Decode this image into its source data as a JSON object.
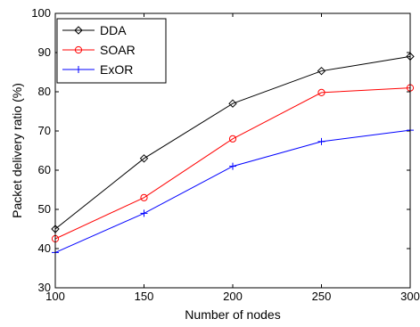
{
  "chart_data": {
    "type": "line",
    "title": "",
    "xlabel": "Number of nodes",
    "ylabel": "Packet delivery ratio (%)",
    "x": [
      100,
      150,
      200,
      250,
      300
    ],
    "xlim": [
      100,
      300
    ],
    "ylim": [
      30,
      100
    ],
    "xticks": [
      "100",
      "150",
      "200",
      "250",
      "300"
    ],
    "yticks": [
      "30",
      "40",
      "50",
      "60",
      "70",
      "80",
      "90",
      "100"
    ],
    "grid": false,
    "legend_position": "top-left",
    "series": [
      {
        "name": "DDA",
        "values": [
          45,
          63,
          77,
          85.3,
          89
        ],
        "color": "#000000",
        "marker": "diamond"
      },
      {
        "name": "SOAR",
        "values": [
          42.5,
          53,
          68,
          79.8,
          81
        ],
        "color": "#ff0000",
        "marker": "circle"
      },
      {
        "name": "ExOR",
        "values": [
          39,
          49,
          61,
          67.3,
          70.2
        ],
        "color": "#0000ff",
        "marker": "plus"
      }
    ]
  }
}
